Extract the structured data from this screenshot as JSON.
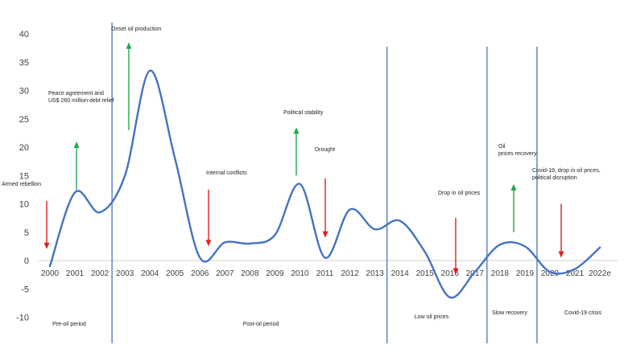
{
  "chart_data": {
    "type": "line",
    "title": "",
    "xlabel": "",
    "ylabel": "",
    "ylim": [
      -10,
      40
    ],
    "yticks": [
      "40",
      "35",
      "30",
      "25",
      "20",
      "15",
      "10",
      "5",
      "0",
      "-5",
      "-10"
    ],
    "categories": [
      "2000",
      "2001",
      "2002",
      "2003",
      "2004",
      "2005",
      "2006",
      "2007",
      "2008",
      "2009",
      "2010",
      "2011",
      "2012",
      "2013",
      "2014",
      "2015",
      "2016",
      "2017",
      "2018",
      "2019",
      "2020",
      "2021",
      "2022e"
    ],
    "series": [
      {
        "values": [
          -1,
          12,
          8.5,
          15,
          33.5,
          18,
          0.5,
          3.2,
          3,
          4.5,
          13.5,
          0.5,
          9,
          5.5,
          7,
          1.5,
          -6.5,
          -2,
          2.8,
          2.5,
          -2,
          -1.5,
          2.3
        ]
      }
    ],
    "line_color": "#4472c4",
    "up_arrow_color": "#22a84a",
    "down_arrow_color": "#e02020",
    "period_lines_after": [
      "2002",
      "2013",
      "2017",
      "2019"
    ],
    "events": [
      {
        "text": "Armed rebellion",
        "x": "2000",
        "direction": "down",
        "from": 10.5,
        "to": 2
      },
      {
        "text": "Peace agreement and\nUS$ 260 million debt relief",
        "x": "2001",
        "direction": "up",
        "from": 12.5,
        "to": 21
      },
      {
        "text": "Onset oil production",
        "x": "2003",
        "direction": "up",
        "from": 23,
        "to": 38.5
      },
      {
        "text": "Internal conflicts",
        "x": "2006",
        "direction": "down",
        "from": 12.5,
        "to": 2.5
      },
      {
        "text": "Political stability",
        "x": "2010",
        "direction": "up",
        "from": 15,
        "to": 23.5
      },
      {
        "text": "Drought",
        "x": "2011",
        "direction": "down",
        "from": 14.5,
        "to": 4
      },
      {
        "text": "Drop in oil prices",
        "x": "2016",
        "direction": "down",
        "from": 7.5,
        "to": -2.5
      },
      {
        "text": "Oil\nprices recovery",
        "x": "2018",
        "direction": "up",
        "from": 5,
        "to": 13.5
      },
      {
        "text": "Covid-19, drop in oil prices,\npolitical disruption",
        "x": "2020",
        "direction": "down",
        "from": 10,
        "to": 0.5
      }
    ],
    "periods": [
      "Pre-oil period",
      "Post-oil period",
      "Low oil prices",
      "Slow recovery",
      "Covid-19 crisis"
    ]
  }
}
